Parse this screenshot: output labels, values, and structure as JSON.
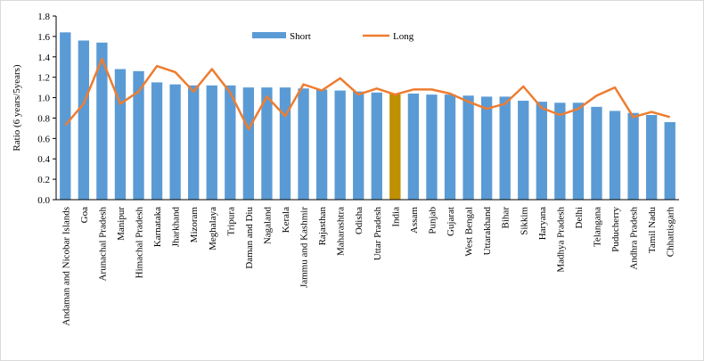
{
  "chart_data": {
    "type": "bar",
    "categories": [
      "Andaman and Nicobar Islands",
      "Goa",
      "Arunachal Pradesh",
      "Manipur",
      "Himachal Pradesh",
      "Karnataka",
      "Jharkhand",
      "Mizoram",
      "Meghalaya",
      "Tripura",
      "Daman and Diu",
      "Nagaland",
      "Kerala",
      "Jammu and Kashmir",
      "Rajasthan",
      "Maharashtra",
      "Odisha",
      "Uttar Pradesh",
      "India",
      "Assam",
      "Punjab",
      "Gujarat",
      "West Bengal",
      "Uttarakhand",
      "Bihar",
      "Sikkim",
      "Haryana",
      "Madhya Pradesh",
      "Delhi",
      "Telangana",
      "Puducherry",
      "Andhra Pradesh",
      "Tamil Nadu",
      "Chhattisgarh"
    ],
    "series": [
      {
        "name": "Short",
        "type": "bar",
        "values": [
          1.64,
          1.56,
          1.54,
          1.28,
          1.26,
          1.15,
          1.13,
          1.12,
          1.12,
          1.12,
          1.1,
          1.1,
          1.1,
          1.09,
          1.08,
          1.07,
          1.06,
          1.05,
          1.04,
          1.04,
          1.03,
          1.03,
          1.02,
          1.01,
          1.01,
          0.97,
          0.96,
          0.95,
          0.95,
          0.91,
          0.87,
          0.85,
          0.83,
          0.76
        ]
      },
      {
        "name": "Long",
        "type": "line",
        "values": [
          0.73,
          0.94,
          1.38,
          0.94,
          1.06,
          1.31,
          1.25,
          1.06,
          1.28,
          1.05,
          0.69,
          1.01,
          0.82,
          1.13,
          1.07,
          1.19,
          1.03,
          1.09,
          1.03,
          1.08,
          1.08,
          1.04,
          0.96,
          0.89,
          0.94,
          1.11,
          0.9,
          0.83,
          0.89,
          1.02,
          1.1,
          0.81,
          0.86,
          0.81
        ]
      }
    ],
    "highlight_category": "India",
    "ylabel": "Ratio (6 years/5years)",
    "xlabel": "",
    "title": "",
    "ylim": [
      0,
      1.8
    ],
    "yticks": [
      "0.0",
      "0.2",
      "0.4",
      "0.6",
      "0.8",
      "1.0",
      "1.2",
      "1.4",
      "1.6",
      "1.8"
    ],
    "grid": false,
    "legend_position": "top-center",
    "colors": {
      "Short": "#5B9BD5",
      "Long": "#ED7D31",
      "highlight": "#BF9000"
    }
  }
}
